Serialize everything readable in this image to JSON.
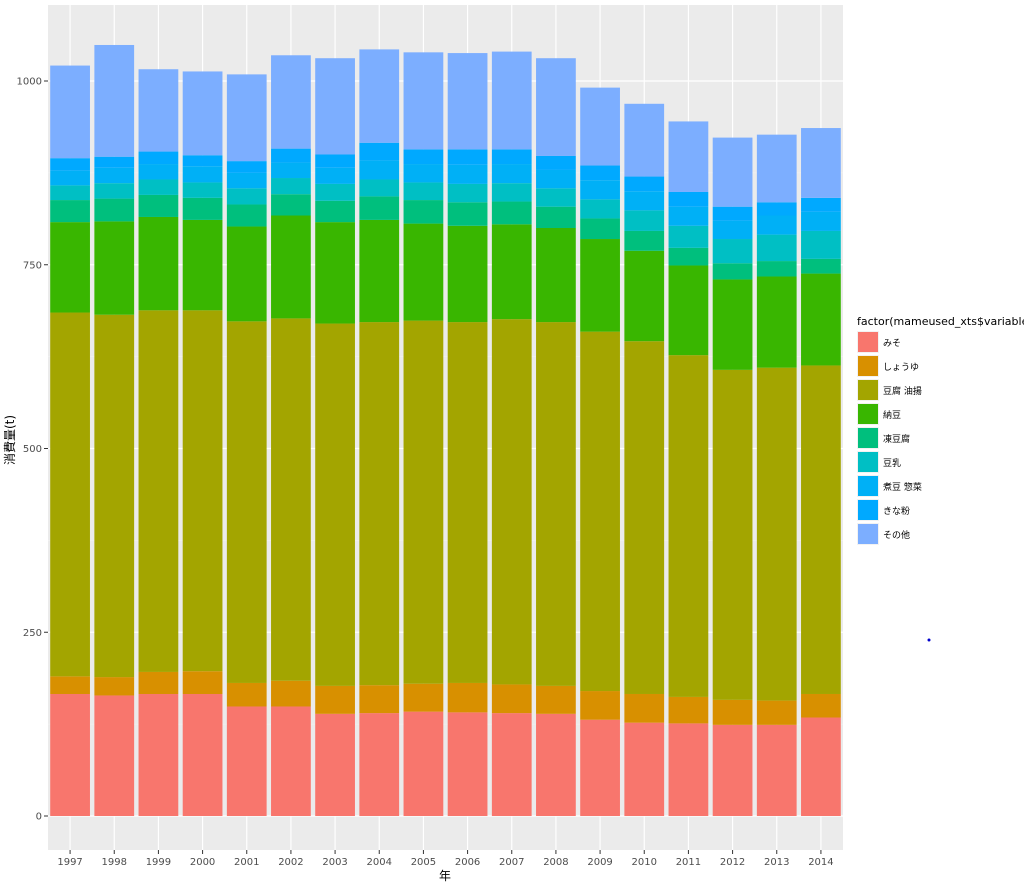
{
  "chart_data": {
    "type": "bar",
    "stacked": true,
    "title": "",
    "xlabel": "年",
    "ylabel": "消費量(t)",
    "ylim": [
      0,
      1075
    ],
    "yticks": [
      0,
      250,
      500,
      750,
      1000
    ],
    "legend_title": "factor(mameused_xts$variable)",
    "legend_position": "right",
    "categories": [
      "1997",
      "1998",
      "1999",
      "2000",
      "2001",
      "2002",
      "2003",
      "2004",
      "2005",
      "2006",
      "2007",
      "2008",
      "2009",
      "2010",
      "2011",
      "2012",
      "2013",
      "2014"
    ],
    "series": [
      {
        "name": "みそ",
        "color": "#F8766D",
        "values": [
          166,
          164,
          166,
          166,
          149,
          149,
          139,
          140,
          142,
          141,
          140,
          139,
          131,
          127,
          126,
          124,
          124,
          134
        ]
      },
      {
        "name": "しょうゆ",
        "color": "#D89000",
        "values": [
          24,
          25,
          30,
          31,
          32,
          35,
          38,
          38,
          38,
          40,
          39,
          38,
          39,
          39,
          36,
          34,
          33,
          32
        ]
      },
      {
        "name": "豆腐 油揚",
        "color": "#A3A500",
        "values": [
          495,
          493,
          492,
          491,
          492,
          493,
          493,
          494,
          494,
          491,
          497,
          495,
          489,
          480,
          465,
          449,
          453,
          447
        ]
      },
      {
        "name": "納豆",
        "color": "#39B600",
        "values": [
          123,
          127,
          127,
          123,
          129,
          140,
          138,
          139,
          132,
          131,
          129,
          128,
          126,
          123,
          122,
          123,
          124,
          125
        ]
      },
      {
        "name": "凍豆腐",
        "color": "#00BF7D",
        "values": [
          30,
          31,
          30,
          30,
          30,
          29,
          29,
          32,
          32,
          32,
          31,
          29,
          28,
          27,
          24,
          22,
          21,
          20
        ]
      },
      {
        "name": "豆乳",
        "color": "#00BFC4",
        "values": [
          20,
          21,
          21,
          21,
          22,
          22,
          23,
          23,
          24,
          25,
          25,
          25,
          26,
          28,
          30,
          33,
          36,
          38
        ]
      },
      {
        "name": "煮豆 惣菜",
        "color": "#00B0F6",
        "values": [
          20,
          21,
          21,
          22,
          21,
          21,
          22,
          26,
          25,
          26,
          26,
          25,
          26,
          26,
          26,
          25,
          26,
          26
        ]
      },
      {
        "name": "きな粉",
        "color": "#00A9FF",
        "values": [
          17,
          15,
          17,
          15,
          16,
          19,
          18,
          24,
          20,
          21,
          20,
          19,
          20,
          20,
          20,
          19,
          18,
          19
        ]
      },
      {
        "name": "その他",
        "color": "#7CAEFF",
        "values": [
          126,
          152,
          112,
          114,
          118,
          127,
          131,
          127,
          132,
          131,
          133,
          133,
          106,
          99,
          96,
          94,
          92,
          95
        ]
      }
    ]
  }
}
